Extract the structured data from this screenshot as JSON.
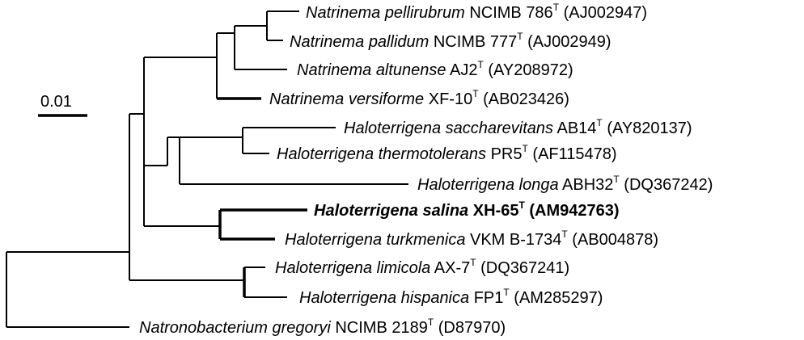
{
  "scale_bar": {
    "label": "0.01",
    "value": 0.01
  },
  "taxa": [
    {
      "id": "t1",
      "species": "Natrinema pellirubrum",
      "strain": "NCIMB 786",
      "type_mark": "T",
      "accession": "(AJ002947)",
      "bold": false
    },
    {
      "id": "t2",
      "species": "Natrinema pallidum",
      "strain": "NCIMB 777",
      "type_mark": "T",
      "accession": "(AJ002949)",
      "bold": false
    },
    {
      "id": "t3",
      "species": "Natrinema altunense",
      "strain": "AJ2",
      "type_mark": "T",
      "accession": "(AY208972)",
      "bold": false
    },
    {
      "id": "t4",
      "species": "Natrinema versiforme",
      "strain": "XF-10",
      "type_mark": "T",
      "accession": "(AB023426)",
      "bold": false
    },
    {
      "id": "t5",
      "species": "Haloterrigena saccharevitans",
      "strain": "AB14",
      "type_mark": "T",
      "accession": "(AY820137)",
      "bold": false
    },
    {
      "id": "t6",
      "species": "Haloterrigena thermotolerans",
      "strain": "PR5",
      "type_mark": "T",
      "accession": "(AF115478)",
      "bold": false
    },
    {
      "id": "t7",
      "species": "Haloterrigena longa",
      "strain": "ABH32",
      "type_mark": "T",
      "accession": "(DQ367242)",
      "bold": false
    },
    {
      "id": "t8",
      "species": "Haloterrigena salina",
      "strain": "XH-65",
      "type_mark": "T",
      "accession": "(AM942763)",
      "bold": true
    },
    {
      "id": "t9",
      "species": "Haloterrigena turkmenica",
      "strain": "VKM B-1734",
      "type_mark": "T",
      "accession": "(AB004878)",
      "bold": false
    },
    {
      "id": "t10",
      "species": "Haloterrigena limicola",
      "strain": "AX-7",
      "type_mark": "T",
      "accession": "(DQ367241)",
      "bold": false
    },
    {
      "id": "t11",
      "species": "Haloterrigena hispanica",
      "strain": "FP1",
      "type_mark": "T",
      "accession": "(AM285297)",
      "bold": false
    },
    {
      "id": "t12",
      "species": "Natronobacterium gregoryi",
      "strain": "NCIMB 2189",
      "type_mark": "T",
      "accession": "(D87970)",
      "bold": false
    }
  ]
}
